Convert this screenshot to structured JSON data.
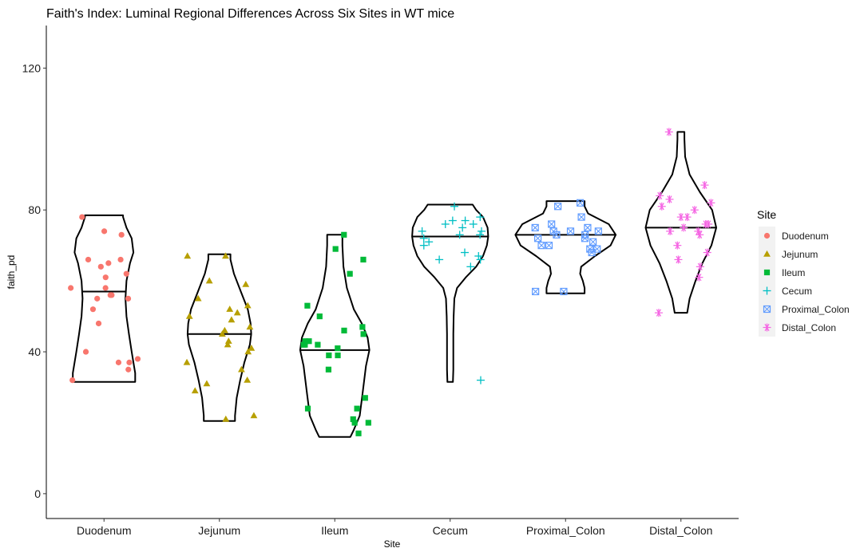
{
  "chart_data": {
    "type": "violin",
    "title": "Faith's Index: Luminal Regional Differences Across Six Sites in WT mice",
    "xlabel": "Site",
    "ylabel": "faith_pd",
    "ylim": [
      -7,
      132
    ],
    "yticks": [
      0,
      40,
      80,
      120
    ],
    "grid": false,
    "legend_title": "Site",
    "legend_position": "right",
    "categories": [
      "Duodenum",
      "Jejunum",
      "Ileum",
      "Cecum",
      "Proximal_Colon",
      "Distal_Colon"
    ],
    "series": [
      {
        "name": "Duodenum",
        "color": "#F8766D",
        "marker": "circle",
        "median": 57,
        "min": 31.5,
        "max": 78.5,
        "shape": [
          [
            31.5,
            0.9
          ],
          [
            34,
            0.9
          ],
          [
            37,
            0.85
          ],
          [
            40,
            0.8
          ],
          [
            45,
            0.72
          ],
          [
            50,
            0.65
          ],
          [
            55,
            0.62
          ],
          [
            60,
            0.65
          ],
          [
            65,
            0.75
          ],
          [
            68,
            0.85
          ],
          [
            72,
            0.8
          ],
          [
            75,
            0.65
          ],
          [
            78,
            0.55
          ],
          [
            78.5,
            0.55
          ]
        ],
        "points": [
          78,
          66,
          65,
          64,
          66,
          62,
          73,
          74,
          61,
          58,
          58,
          56,
          56,
          55,
          55,
          52,
          48,
          40,
          38,
          37,
          37,
          35,
          32
        ]
      },
      {
        "name": "Jejunum",
        "color": "#B79F00",
        "marker": "triangle",
        "median": 45,
        "min": 20.5,
        "max": 67.5,
        "shape": [
          [
            20.5,
            0.45
          ],
          [
            22,
            0.45
          ],
          [
            27,
            0.5
          ],
          [
            32,
            0.6
          ],
          [
            37,
            0.72
          ],
          [
            42,
            0.88
          ],
          [
            45,
            0.92
          ],
          [
            48,
            0.9
          ],
          [
            52,
            0.82
          ],
          [
            57,
            0.62
          ],
          [
            62,
            0.42
          ],
          [
            66,
            0.32
          ],
          [
            67.5,
            0.32
          ]
        ],
        "points": [
          67,
          67,
          60,
          59,
          55,
          53,
          52,
          51,
          50,
          49,
          47,
          46,
          45,
          43,
          42,
          41,
          40,
          37,
          35,
          32,
          31,
          29,
          22,
          21
        ]
      },
      {
        "name": "Ileum",
        "color": "#00BA38",
        "marker": "square",
        "median": 40.5,
        "min": 16,
        "max": 73,
        "shape": [
          [
            16,
            0.45
          ],
          [
            18,
            0.55
          ],
          [
            22,
            0.72
          ],
          [
            28,
            0.8
          ],
          [
            32,
            0.85
          ],
          [
            36,
            0.9
          ],
          [
            40.5,
            1.0
          ],
          [
            44,
            0.95
          ],
          [
            48,
            0.78
          ],
          [
            52,
            0.55
          ],
          [
            58,
            0.35
          ],
          [
            64,
            0.25
          ],
          [
            70,
            0.22
          ],
          [
            73,
            0.22
          ]
        ],
        "points": [
          73,
          69,
          66,
          62,
          53,
          50,
          47,
          46,
          45,
          43,
          43,
          42,
          42,
          42,
          41,
          39,
          39,
          35,
          27,
          24,
          24,
          21,
          20,
          20,
          17
        ]
      },
      {
        "name": "Cecum",
        "color": "#00BFC4",
        "marker": "plus",
        "median": 72.5,
        "min": 31.5,
        "max": 81.5,
        "shape": [
          [
            31.5,
            0.08
          ],
          [
            35,
            0.09
          ],
          [
            40,
            0.09
          ],
          [
            45,
            0.09
          ],
          [
            50,
            0.1
          ],
          [
            55,
            0.12
          ],
          [
            58,
            0.2
          ],
          [
            61,
            0.45
          ],
          [
            64,
            0.75
          ],
          [
            67,
            0.95
          ],
          [
            70,
            1.06
          ],
          [
            72.5,
            1.1
          ],
          [
            75,
            1.08
          ],
          [
            78,
            0.95
          ],
          [
            80,
            0.75
          ],
          [
            81.5,
            0.65
          ]
        ],
        "points": [
          81,
          78,
          77,
          77,
          76,
          76,
          75,
          74,
          74,
          73,
          73,
          72,
          71,
          70,
          68,
          67,
          66,
          66,
          64,
          32
        ]
      },
      {
        "name": "Proximal_Colon",
        "color": "#619CFF",
        "marker": "square-x",
        "median": 73,
        "min": 56.5,
        "max": 82.5,
        "shape": [
          [
            56.5,
            0.55
          ],
          [
            58,
            0.55
          ],
          [
            60,
            0.5
          ],
          [
            62,
            0.42
          ],
          [
            64,
            0.45
          ],
          [
            67,
            0.85
          ],
          [
            70,
            1.3
          ],
          [
            73,
            1.45
          ],
          [
            76,
            1.25
          ],
          [
            79,
            0.65
          ],
          [
            81,
            0.55
          ],
          [
            82.5,
            0.55
          ]
        ],
        "points": [
          82,
          81,
          78,
          76,
          75,
          75,
          74,
          74,
          74,
          73,
          73,
          72,
          72,
          71,
          70,
          70,
          69,
          69,
          68,
          57,
          57
        ]
      },
      {
        "name": "Distal_Colon",
        "color": "#F564E3",
        "marker": "asterisk",
        "median": 75,
        "min": 51,
        "max": 102,
        "shape": [
          [
            51,
            0.18
          ],
          [
            55,
            0.25
          ],
          [
            60,
            0.42
          ],
          [
            65,
            0.62
          ],
          [
            70,
            0.88
          ],
          [
            75,
            1.02
          ],
          [
            80,
            0.9
          ],
          [
            85,
            0.55
          ],
          [
            90,
            0.25
          ],
          [
            95,
            0.12
          ],
          [
            100,
            0.1
          ],
          [
            102,
            0.1
          ]
        ],
        "points": [
          102,
          87,
          84,
          83,
          82,
          81,
          80,
          78,
          78,
          76,
          76,
          75,
          74,
          74,
          73,
          70,
          68,
          66,
          64,
          61,
          51
        ]
      }
    ]
  }
}
